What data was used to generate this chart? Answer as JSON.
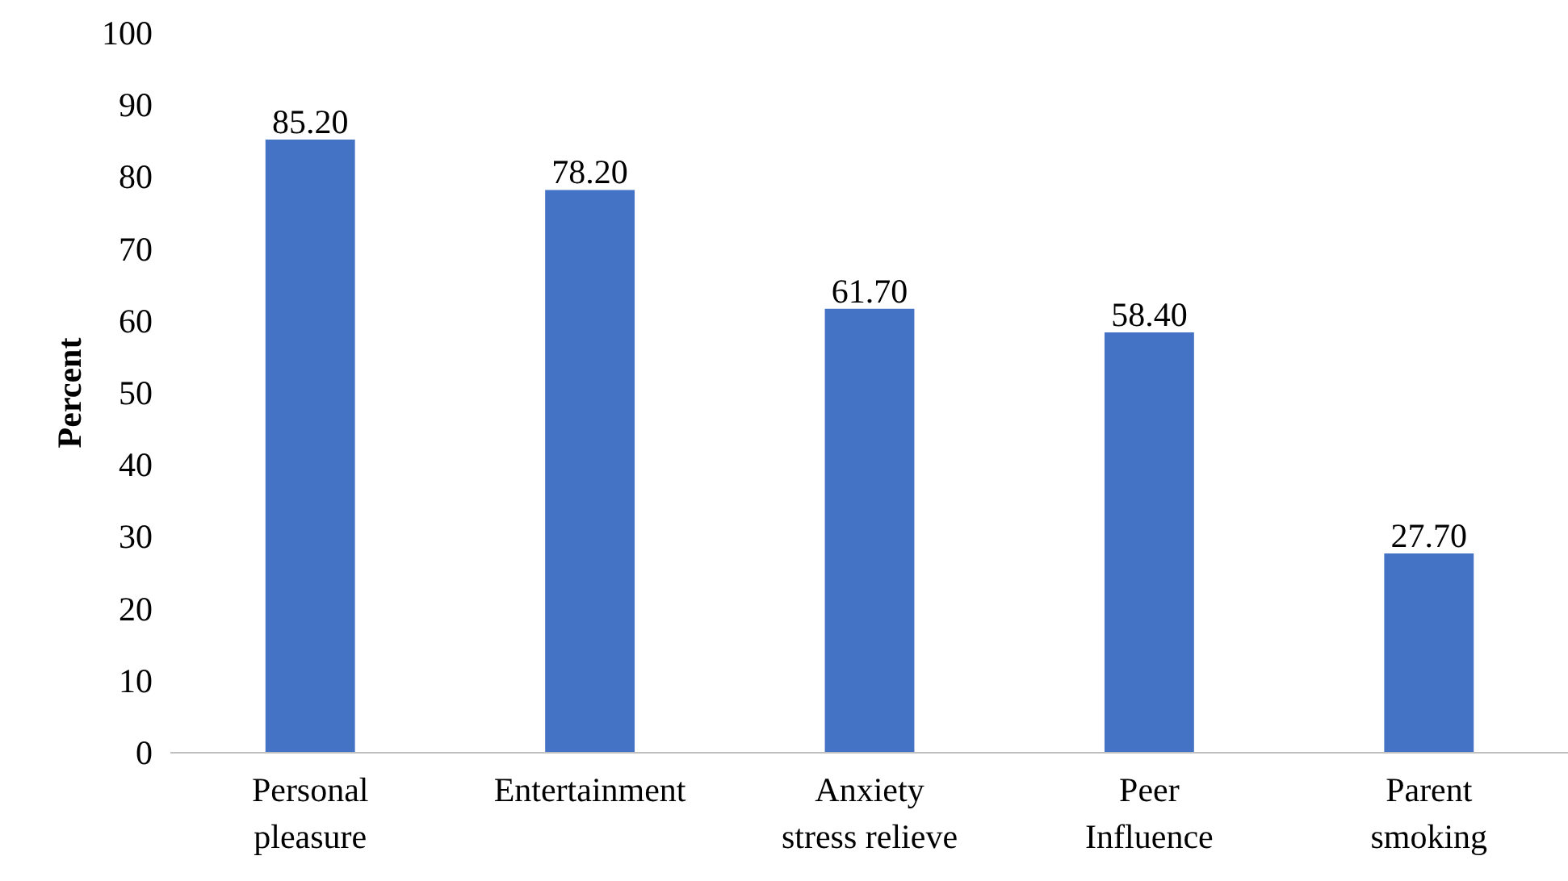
{
  "chart_data": {
    "type": "bar",
    "ylabel": "Percent",
    "categories": [
      "Personal pleasure",
      "Entertainment",
      "Anxiety stress relieve",
      "Peer Influence",
      "Parent smoking"
    ],
    "values": [
      85.2,
      78.2,
      61.7,
      58.4,
      27.7
    ],
    "value_labels": [
      "85.20",
      "78.20",
      "61.70",
      "58.40",
      "27.70"
    ],
    "color": "#4472c4",
    "ylim": [
      0,
      100
    ],
    "yticks": [
      0,
      10,
      20,
      30,
      40,
      50,
      60,
      70,
      80,
      90,
      100
    ],
    "grid": false
  }
}
